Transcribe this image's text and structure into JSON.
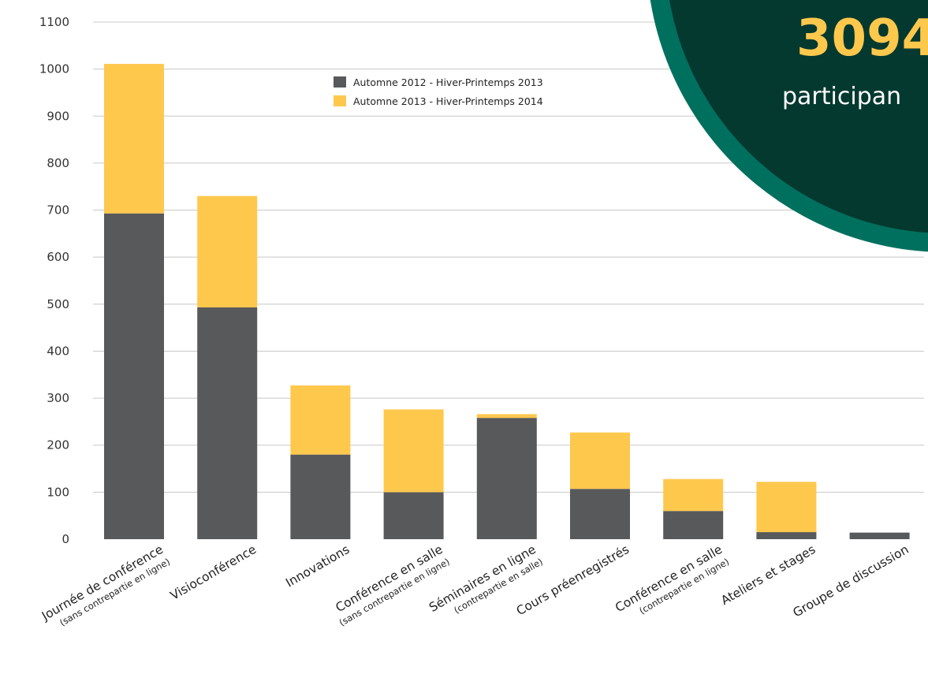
{
  "chart_data": {
    "type": "bar",
    "stacked": true,
    "categories": [
      {
        "label": "Journée de conférence",
        "sublabel": "(sans contrepartie en ligne)"
      },
      {
        "label": "Visioconférence",
        "sublabel": ""
      },
      {
        "label": "Innovations",
        "sublabel": ""
      },
      {
        "label": "Conférence en salle",
        "sublabel": "(sans contrepartie en ligne)"
      },
      {
        "label": "Séminaires en ligne",
        "sublabel": "(contrepartie en salle)"
      },
      {
        "label": "Cours préenregistrés",
        "sublabel": ""
      },
      {
        "label": "Conférence en salle",
        "sublabel": "(contrepartie en ligne)"
      },
      {
        "label": "Ateliers et stages",
        "sublabel": ""
      },
      {
        "label": "Groupe de discussion",
        "sublabel": ""
      }
    ],
    "series": [
      {
        "name": "Automne 2012 - Hiver-Printemps 2013",
        "color": "#58595b",
        "values": [
          693,
          493,
          180,
          100,
          258,
          107,
          60,
          15,
          14
        ]
      },
      {
        "name": "Automne 2013 - Hiver-Printemps 2014",
        "color": "#fec84d",
        "values": [
          318,
          237,
          147,
          176,
          8,
          120,
          68,
          107,
          0
        ]
      }
    ],
    "ylim": [
      0,
      1100
    ],
    "yticks": [
      0,
      100,
      200,
      300,
      400,
      500,
      600,
      700,
      800,
      900,
      1000,
      1100
    ],
    "grid": true,
    "legend_position": "top-center"
  },
  "badge": {
    "number": "3094",
    "word": "participan",
    "number_color": "#fec84d",
    "word_color": "#ffffff",
    "inner_color": "#04392f",
    "ring_color": "#00705e"
  }
}
